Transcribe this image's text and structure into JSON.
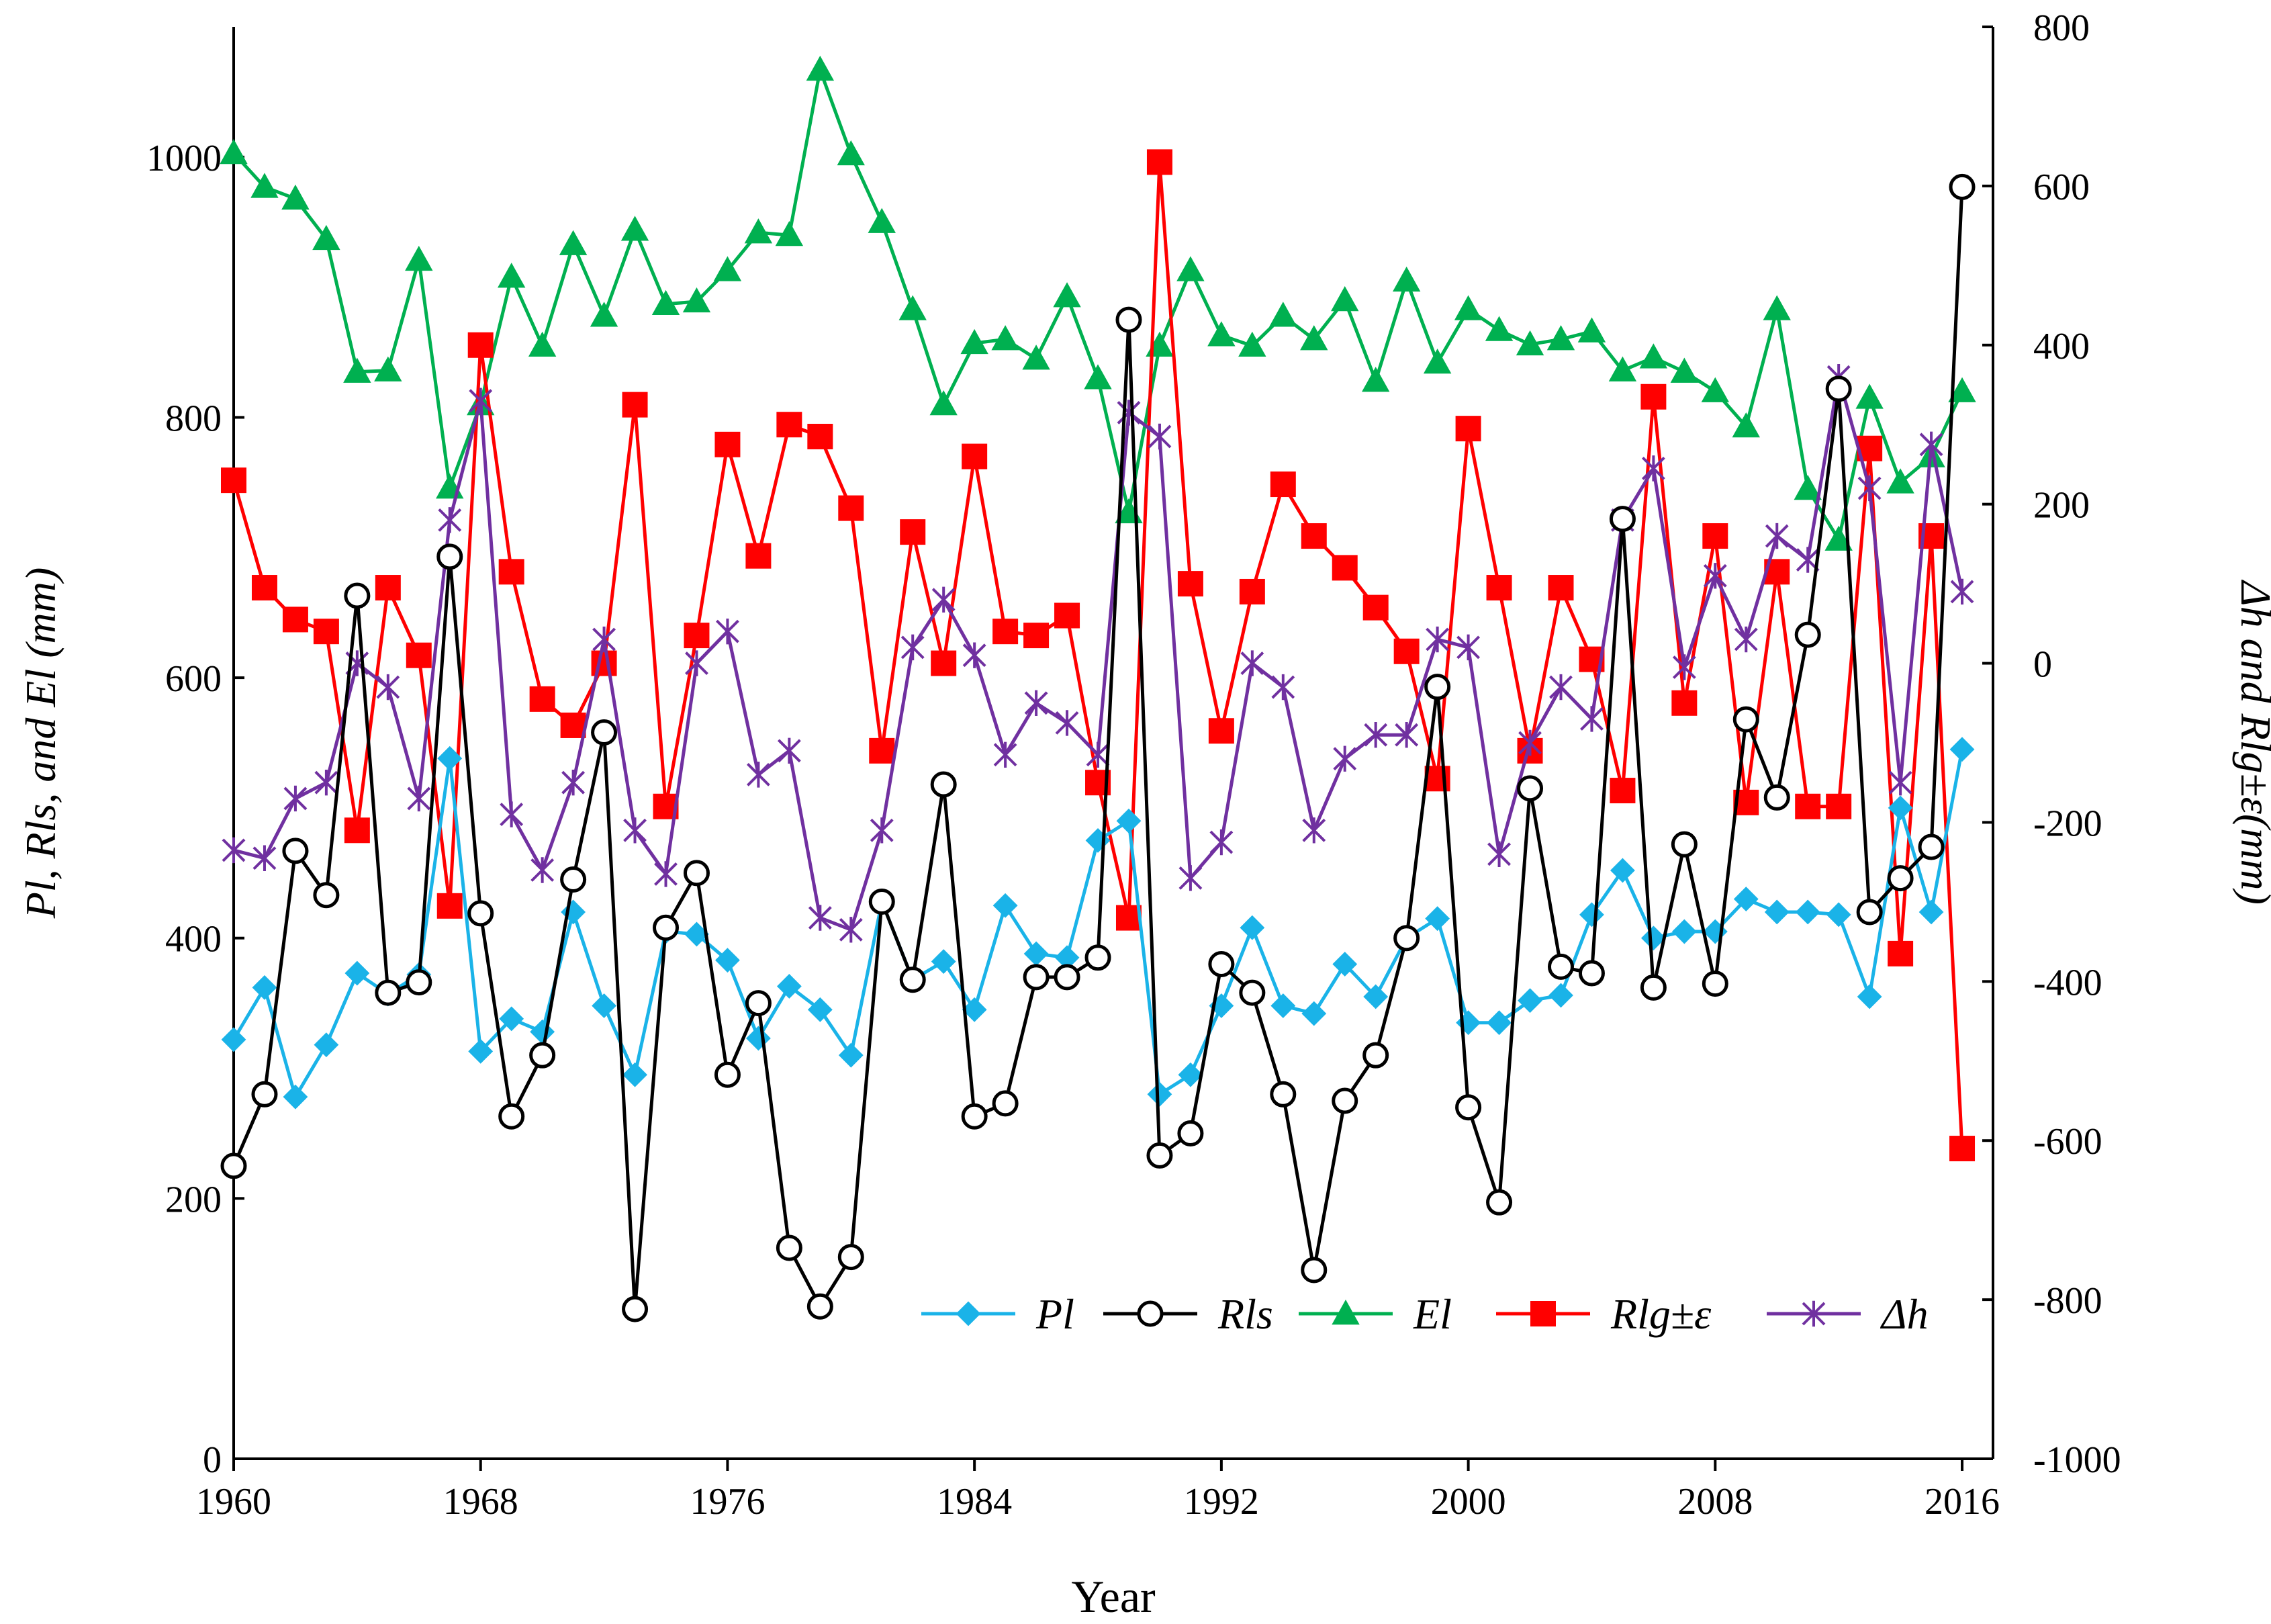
{
  "chart_data": {
    "type": "line",
    "xlabel": "Year",
    "ylabel_left": "Pl, Rls, and El (mm)",
    "ylabel_right": "Δh and Rlg±ε(mm)",
    "xlim": [
      1960,
      2017
    ],
    "ylim_left": [
      0,
      1100
    ],
    "ylim_right": [
      -1000,
      800
    ],
    "x_ticks": [
      1960,
      1968,
      1976,
      1984,
      1992,
      2000,
      2008,
      2016
    ],
    "x_tick_labels": [
      "1960",
      "1968",
      "1976",
      "1984",
      "1992",
      "2000",
      "2008",
      "2016"
    ],
    "y_left_ticks": [
      0,
      200,
      400,
      600,
      800,
      1000
    ],
    "y_left_tick_labels": [
      "0",
      "200",
      "400",
      "600",
      "800",
      "1000"
    ],
    "y_right_ticks": [
      -1000,
      -800,
      -600,
      -400,
      -200,
      0,
      200,
      400,
      600,
      800
    ],
    "y_right_tick_labels": [
      "-1000",
      "-800",
      "-600",
      "-400",
      "-200",
      "0",
      "200",
      "400",
      "600",
      "800"
    ],
    "legend_position": "bottom-right",
    "x": [
      1960,
      1961,
      1962,
      1963,
      1964,
      1965,
      1966,
      1967,
      1968,
      1969,
      1970,
      1971,
      1972,
      1973,
      1974,
      1975,
      1976,
      1977,
      1978,
      1979,
      1980,
      1981,
      1982,
      1983,
      1984,
      1985,
      1986,
      1987,
      1988,
      1989,
      1990,
      1991,
      1992,
      1993,
      1994,
      1995,
      1996,
      1997,
      1998,
      1999,
      2000,
      2001,
      2002,
      2003,
      2004,
      2005,
      2006,
      2007,
      2008,
      2009,
      2010,
      2011,
      2012,
      2013,
      2014,
      2015,
      2016
    ],
    "series": [
      {
        "name": "Pl",
        "axis": "left",
        "color": "#1ab3e8",
        "marker": "diamond",
        "values": [
          322,
          362,
          278,
          318,
          373,
          357,
          372,
          538,
          313,
          338,
          328,
          420,
          348,
          295,
          405,
          403,
          383,
          323,
          363,
          345,
          310,
          428,
          368,
          382,
          345,
          425,
          388,
          385,
          475,
          490,
          280,
          295,
          348,
          408,
          348,
          342,
          380,
          355,
          400,
          415,
          335,
          335,
          352,
          356,
          418,
          452,
          400,
          405,
          405,
          430,
          420,
          420,
          418,
          355,
          500,
          420,
          545
        ]
      },
      {
        "name": "Rls",
        "axis": "left",
        "color": "#000000",
        "marker": "circle",
        "values": [
          225,
          280,
          467,
          433,
          663,
          358,
          366,
          693,
          419,
          263,
          310,
          445,
          558,
          115,
          408,
          450,
          295,
          350,
          162,
          117,
          155,
          428,
          368,
          518,
          263,
          273,
          370,
          370,
          385,
          875,
          233,
          250,
          380,
          358,
          280,
          145,
          275,
          310,
          400,
          593,
          270,
          197,
          515,
          378,
          373,
          722,
          362,
          472,
          365,
          568,
          508,
          633,
          822,
          420,
          446,
          470,
          977
        ]
      },
      {
        "name": "El",
        "axis": "left",
        "color": "#00b050",
        "marker": "triangle",
        "values": [
          1003,
          977,
          968,
          937,
          835,
          836,
          921,
          746,
          810,
          908,
          855,
          933,
          878,
          944,
          887,
          889,
          913,
          942,
          940,
          1067,
          1002,
          950,
          883,
          810,
          857,
          860,
          845,
          893,
          830,
          727,
          855,
          913,
          863,
          855,
          878,
          860,
          890,
          828,
          905,
          842,
          883,
          867,
          856,
          860,
          866,
          836,
          846,
          835,
          820,
          793,
          883,
          745,
          706,
          815,
          750,
          770,
          820
        ]
      },
      {
        "name": "Rlg±ε",
        "axis": "right",
        "color": "#ff0000",
        "marker": "square",
        "values": [
          230,
          95,
          55,
          40,
          -210,
          95,
          10,
          -305,
          400,
          115,
          -45,
          -78,
          0,
          325,
          -180,
          35,
          275,
          135,
          300,
          285,
          195,
          -110,
          165,
          0,
          260,
          40,
          35,
          60,
          -150,
          -320,
          630,
          100,
          -85,
          90,
          225,
          160,
          120,
          70,
          15,
          -145,
          295,
          95,
          -110,
          95,
          5,
          -160,
          335,
          -50,
          160,
          -175,
          115,
          -180,
          -180,
          270,
          -365,
          160,
          -610
        ]
      },
      {
        "name": "Δh",
        "axis": "right",
        "color": "#7030a0",
        "marker": "star",
        "values": [
          -235,
          -245,
          -170,
          -150,
          0,
          -30,
          -170,
          180,
          330,
          -190,
          -260,
          -150,
          30,
          -210,
          -265,
          0,
          40,
          -140,
          -110,
          -320,
          -335,
          -210,
          20,
          80,
          10,
          -115,
          -50,
          -75,
          -115,
          315,
          285,
          -270,
          -225,
          0,
          -30,
          -210,
          -120,
          -90,
          -90,
          30,
          20,
          -240,
          -100,
          -30,
          -70,
          180,
          245,
          -5,
          110,
          30,
          160,
          130,
          360,
          220,
          -150,
          275,
          90
        ]
      }
    ],
    "legend": [
      "Pl",
      "Rls",
      "El",
      "Rlg±ε",
      "Δh"
    ]
  }
}
